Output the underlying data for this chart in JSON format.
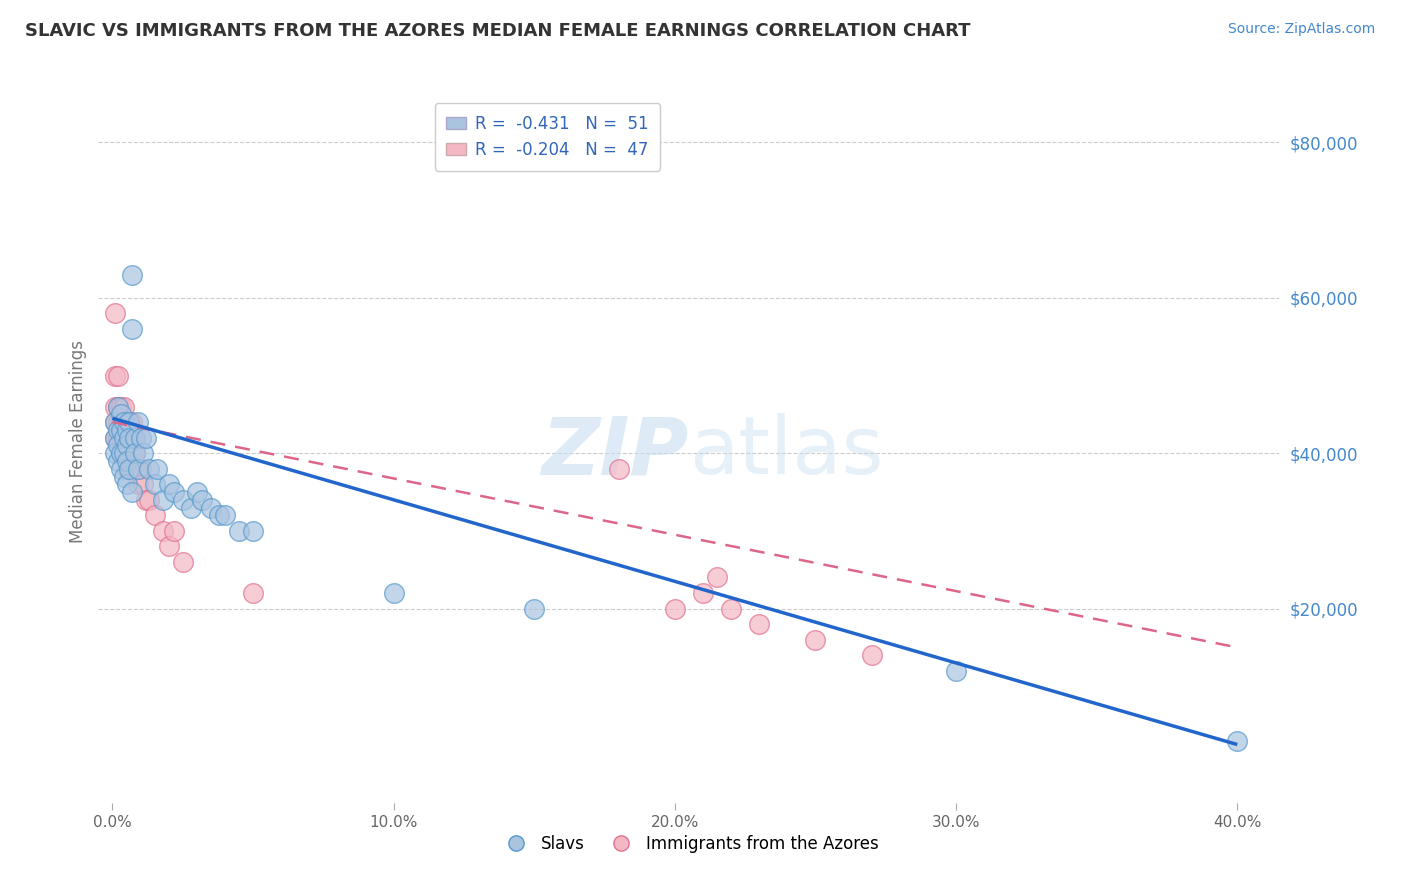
{
  "title": "SLAVIC VS IMMIGRANTS FROM THE AZORES MEDIAN FEMALE EARNINGS CORRELATION CHART",
  "source": "Source: ZipAtlas.com",
  "ylabel": "Median Female Earnings",
  "xlabel_ticks": [
    "0.0%",
    "10.0%",
    "20.0%",
    "30.0%",
    "40.0%"
  ],
  "xlabel_vals": [
    0.0,
    0.1,
    0.2,
    0.3,
    0.4
  ],
  "ylabel_ticks": [
    "$80,000",
    "$60,000",
    "$40,000",
    "$20,000"
  ],
  "ylabel_vals": [
    80000,
    60000,
    40000,
    20000
  ],
  "xlim": [
    -0.005,
    0.415
  ],
  "ylim": [
    -5000,
    88000
  ],
  "slavic_color": "#aac4e0",
  "azores_color": "#f4b8c4",
  "slavic_edge": "#5599cc",
  "azores_edge": "#e07090",
  "slavic_line_color": "#2266cc",
  "azores_line_color": "#dd6688",
  "r_slavic": -0.431,
  "n_slavic": 51,
  "r_azores": -0.204,
  "n_azores": 47,
  "legend_label_slavic": "Slavs",
  "legend_label_azores": "Immigrants from the Azores",
  "watermark_zip": "ZIP",
  "watermark_atlas": "atlas",
  "slavic_x": [
    0.001,
    0.001,
    0.001,
    0.002,
    0.002,
    0.002,
    0.002,
    0.003,
    0.003,
    0.003,
    0.003,
    0.004,
    0.004,
    0.004,
    0.004,
    0.005,
    0.005,
    0.005,
    0.005,
    0.006,
    0.006,
    0.006,
    0.007,
    0.007,
    0.007,
    0.008,
    0.008,
    0.009,
    0.009,
    0.01,
    0.011,
    0.012,
    0.013,
    0.015,
    0.016,
    0.018,
    0.02,
    0.022,
    0.025,
    0.028,
    0.03,
    0.032,
    0.035,
    0.038,
    0.04,
    0.045,
    0.05,
    0.1,
    0.15,
    0.3,
    0.4
  ],
  "slavic_y": [
    44000,
    42000,
    40000,
    46000,
    43000,
    41000,
    39000,
    45000,
    43000,
    40000,
    38000,
    44000,
    42000,
    40000,
    37000,
    43000,
    41000,
    39000,
    36000,
    44000,
    42000,
    38000,
    63000,
    56000,
    35000,
    42000,
    40000,
    44000,
    38000,
    42000,
    40000,
    42000,
    38000,
    36000,
    38000,
    34000,
    36000,
    35000,
    34000,
    33000,
    35000,
    34000,
    33000,
    32000,
    32000,
    30000,
    30000,
    22000,
    20000,
    12000,
    3000
  ],
  "azores_x": [
    0.001,
    0.001,
    0.001,
    0.001,
    0.001,
    0.002,
    0.002,
    0.002,
    0.002,
    0.003,
    0.003,
    0.003,
    0.003,
    0.004,
    0.004,
    0.004,
    0.005,
    0.005,
    0.005,
    0.006,
    0.006,
    0.006,
    0.007,
    0.007,
    0.007,
    0.008,
    0.008,
    0.008,
    0.009,
    0.01,
    0.011,
    0.012,
    0.013,
    0.015,
    0.018,
    0.02,
    0.022,
    0.025,
    0.05,
    0.18,
    0.2,
    0.21,
    0.215,
    0.22,
    0.23,
    0.25,
    0.27
  ],
  "azores_y": [
    58000,
    50000,
    46000,
    44000,
    42000,
    50000,
    46000,
    44000,
    42000,
    46000,
    44000,
    42000,
    40000,
    46000,
    44000,
    40000,
    44000,
    42000,
    38000,
    44000,
    42000,
    38000,
    44000,
    42000,
    38000,
    42000,
    40000,
    38000,
    36000,
    38000,
    36000,
    34000,
    34000,
    32000,
    30000,
    28000,
    30000,
    26000,
    22000,
    38000,
    20000,
    22000,
    24000,
    20000,
    18000,
    16000,
    14000
  ],
  "slavic_line_x0": 0.0,
  "slavic_line_y0": 44500,
  "slavic_line_x1": 0.4,
  "slavic_line_y1": 2500,
  "azores_line_x0": 0.0,
  "azores_line_y0": 44000,
  "azores_line_x1": 0.4,
  "azores_line_y1": 15000
}
